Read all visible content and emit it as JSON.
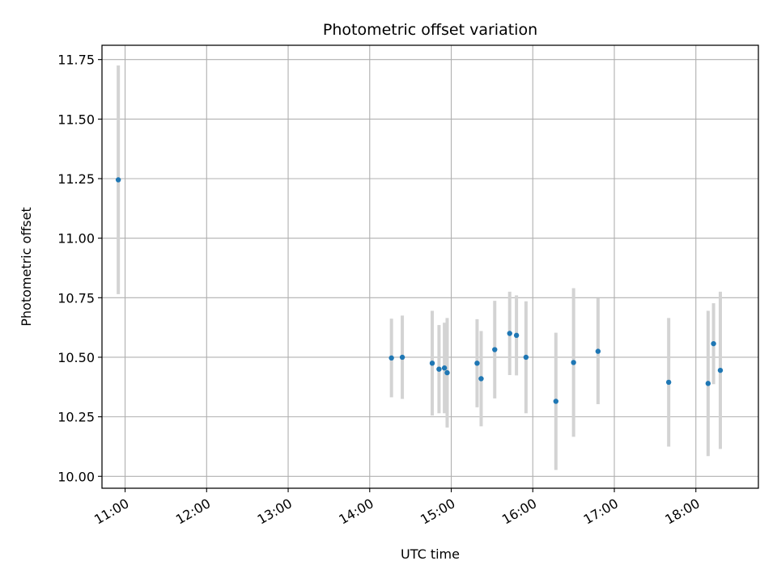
{
  "chart_data": {
    "type": "scatter",
    "title": "Photometric offset variation",
    "xlabel": "UTC time",
    "ylabel": "Photometric offset",
    "grid": true,
    "xlim": [
      "10:43",
      "18:46"
    ],
    "ylim": [
      9.95,
      11.81
    ],
    "x_ticks": [
      "11:00",
      "12:00",
      "13:00",
      "14:00",
      "15:00",
      "16:00",
      "17:00",
      "18:00"
    ],
    "y_ticks": [
      "10.00",
      "10.25",
      "10.50",
      "10.75",
      "11.00",
      "11.25",
      "11.50",
      "11.75"
    ],
    "point_color": "#1f77b4",
    "errorbar_color": "#d3d3d3",
    "series": [
      {
        "points": [
          {
            "x": "10:55",
            "y": 11.245,
            "yerr": 0.48
          },
          {
            "x": "14:16",
            "y": 10.497,
            "yerr": 0.165
          },
          {
            "x": "14:24",
            "y": 10.5,
            "yerr": 0.175
          },
          {
            "x": "14:46",
            "y": 10.475,
            "yerr": 0.22
          },
          {
            "x": "14:51",
            "y": 10.45,
            "yerr": 0.185
          },
          {
            "x": "14:55",
            "y": 10.455,
            "yerr": 0.19
          },
          {
            "x": "14:57",
            "y": 10.435,
            "yerr": 0.23
          },
          {
            "x": "15:19",
            "y": 10.475,
            "yerr": 0.185
          },
          {
            "x": "15:22",
            "y": 10.41,
            "yerr": 0.2
          },
          {
            "x": "15:32",
            "y": 10.532,
            "yerr": 0.205
          },
          {
            "x": "15:43",
            "y": 10.6,
            "yerr": 0.175
          },
          {
            "x": "15:48",
            "y": 10.592,
            "yerr": 0.168
          },
          {
            "x": "15:55",
            "y": 10.5,
            "yerr": 0.235
          },
          {
            "x": "16:17",
            "y": 10.315,
            "yerr": 0.288
          },
          {
            "x": "16:30",
            "y": 10.478,
            "yerr": 0.312
          },
          {
            "x": "16:48",
            "y": 10.525,
            "yerr": 0.222
          },
          {
            "x": "17:40",
            "y": 10.395,
            "yerr": 0.27
          },
          {
            "x": "18:09",
            "y": 10.39,
            "yerr": 0.305
          },
          {
            "x": "18:13",
            "y": 10.557,
            "yerr": 0.17
          },
          {
            "x": "18:18",
            "y": 10.445,
            "yerr": 0.33
          }
        ]
      }
    ]
  }
}
